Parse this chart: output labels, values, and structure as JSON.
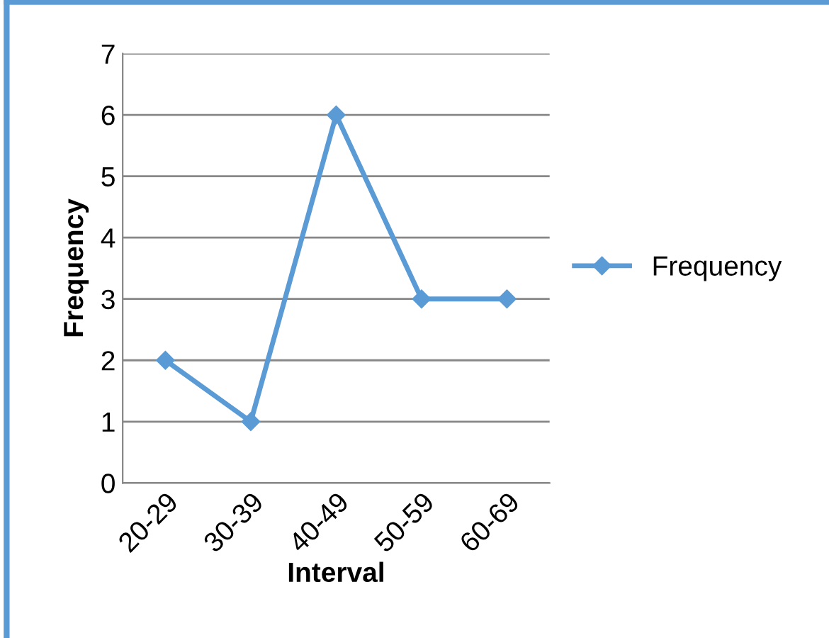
{
  "chart_data": {
    "type": "line",
    "xlabel": "Interval",
    "ylabel": "Frequency",
    "categories": [
      "20-29",
      "30-39",
      "40-49",
      "50-59",
      "60-69"
    ],
    "series": [
      {
        "name": "Frequency",
        "color": "#5b9bd5",
        "values": [
          2,
          1,
          6,
          3,
          3
        ]
      }
    ],
    "ylim": [
      0,
      7
    ],
    "yticks": [
      0,
      1,
      2,
      3,
      4,
      5,
      6,
      7
    ],
    "grid": "y",
    "legend": "right",
    "marker": "diamond",
    "line_style": "solid"
  }
}
